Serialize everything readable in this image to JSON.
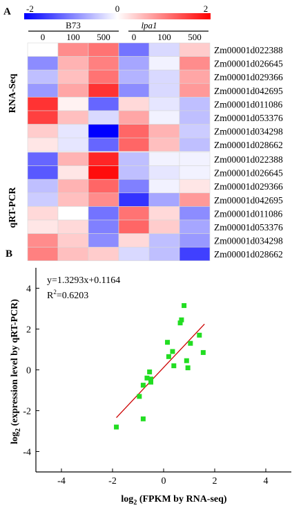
{
  "panel_a": {
    "label": "A",
    "legend": {
      "min_label": "-2",
      "mid_label": "0",
      "max_label": "2",
      "low_color": "#0000ff",
      "mid_color": "#ffffff",
      "high_color": "#ff0000"
    },
    "groups": [
      {
        "name": "B73",
        "italic": false,
        "conditions": [
          "0",
          "100",
          "500"
        ]
      },
      {
        "name": "lpa1",
        "italic": true,
        "conditions": [
          "0",
          "100",
          "500"
        ]
      }
    ],
    "genes": [
      "Zm00001d022388",
      "Zm00001d026645",
      "Zm00001d029366",
      "Zm00001d042695",
      "Zm00001d011086",
      "Zm00001d053376",
      "Zm00001d034298",
      "Zm00001d028662"
    ]
  },
  "panel_b": {
    "label": "B"
  },
  "chart_data": [
    {
      "type": "heatmap",
      "title": "RNA-Seq",
      "scale": [
        -2,
        2
      ],
      "rows": [
        "Zm00001d022388",
        "Zm00001d026645",
        "Zm00001d029366",
        "Zm00001d042695",
        "Zm00001d011086",
        "Zm00001d053376",
        "Zm00001d034298",
        "Zm00001d028662"
      ],
      "columns": [
        "B73 0",
        "B73 100",
        "B73 500",
        "lpa1 0",
        "lpa1 100",
        "lpa1 500"
      ],
      "values": [
        [
          0.0,
          0.9,
          1.1,
          -1.1,
          -0.3,
          0.4
        ],
        [
          -0.9,
          0.6,
          1.0,
          -0.7,
          -0.1,
          0.9
        ],
        [
          -0.5,
          0.5,
          1.1,
          -0.6,
          -0.3,
          0.7
        ],
        [
          -0.8,
          0.7,
          1.6,
          -0.9,
          -0.3,
          0.8
        ],
        [
          1.6,
          0.1,
          -1.2,
          0.3,
          -0.2,
          -0.5
        ],
        [
          1.5,
          0.5,
          -0.3,
          0.7,
          -0.1,
          -0.5
        ],
        [
          0.4,
          -0.2,
          -2.0,
          1.2,
          0.6,
          -0.4
        ],
        [
          0.2,
          -0.2,
          -1.2,
          1.2,
          0.5,
          -0.5
        ]
      ]
    },
    {
      "type": "heatmap",
      "title": "qRT-PCR",
      "scale": [
        -2,
        2
      ],
      "rows": [
        "Zm00001d022388",
        "Zm00001d026645",
        "Zm00001d029366",
        "Zm00001d042695",
        "Zm00001d011086",
        "Zm00001d053376",
        "Zm00001d034298",
        "Zm00001d028662"
      ],
      "columns": [
        "B73 0",
        "B73 100",
        "B73 500",
        "lpa1 0",
        "lpa1 100",
        "lpa1 500"
      ],
      "values": [
        [
          -1.2,
          0.6,
          1.7,
          -0.5,
          -0.1,
          -0.1
        ],
        [
          -1.3,
          0.2,
          1.9,
          -0.5,
          -0.2,
          -0.1
        ],
        [
          -0.5,
          0.6,
          1.2,
          -1.0,
          -0.1,
          0.2
        ],
        [
          -0.4,
          0.5,
          0.9,
          -1.6,
          -0.7,
          0.8
        ],
        [
          0.3,
          0.0,
          -1.1,
          1.1,
          0.3,
          -0.9
        ],
        [
          0.2,
          0.3,
          -1.0,
          1.2,
          0.4,
          -0.7
        ],
        [
          0.9,
          0.4,
          -0.9,
          0.3,
          -0.5,
          -0.8
        ],
        [
          1.0,
          0.5,
          0.4,
          -0.3,
          -0.5,
          -1.5
        ]
      ]
    },
    {
      "type": "scatter",
      "xlabel": "log2 (FPKM by RNA-seq)",
      "xlabel_main": "log",
      "xlabel_sub": "2",
      "xlabel_rest": " (FPKM by RNA-seq)",
      "ylabel": "log2 (expression level by qRT-PCR)",
      "ylabel_main": "log",
      "ylabel_sub": "2",
      "ylabel_rest": " (expression level by qRT-PCR)",
      "xlim": [
        -5,
        5
      ],
      "ylim": [
        -5,
        5
      ],
      "xticks": [
        -4,
        -2,
        0,
        2,
        4
      ],
      "yticks": [
        -4,
        -2,
        0,
        2,
        4
      ],
      "equation": "y=1.3293x+0.1164",
      "r2_label": "R",
      "r2_sup": "2",
      "r2_value": "=0.6203",
      "fit": {
        "slope": 1.3293,
        "intercept": 0.1164,
        "x_range": [
          -1.85,
          1.6
        ]
      },
      "point_color": "#22dd22",
      "line_color": "#cc0000",
      "points": [
        [
          -1.85,
          -2.8
        ],
        [
          -0.8,
          -2.4
        ],
        [
          -0.95,
          -1.3
        ],
        [
          -0.8,
          -0.75
        ],
        [
          -0.65,
          -0.4
        ],
        [
          -0.55,
          -0.1
        ],
        [
          -0.5,
          -0.45
        ],
        [
          -0.5,
          -0.6
        ],
        [
          0.15,
          1.35
        ],
        [
          0.2,
          0.65
        ],
        [
          0.35,
          0.9
        ],
        [
          0.4,
          0.2
        ],
        [
          0.65,
          2.3
        ],
        [
          0.7,
          2.45
        ],
        [
          0.8,
          3.15
        ],
        [
          0.9,
          0.45
        ],
        [
          0.95,
          0.1
        ],
        [
          1.05,
          1.3
        ],
        [
          1.4,
          1.7
        ],
        [
          1.55,
          0.85
        ]
      ]
    }
  ]
}
